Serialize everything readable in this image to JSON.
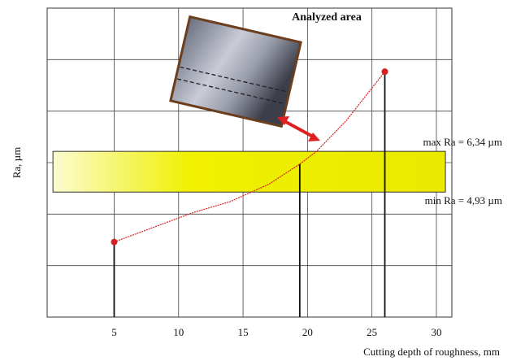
{
  "chart_data": {
    "type": "line",
    "x_label": "Cutting depth of roughness, mm",
    "y_label": "Ra, µm",
    "annotation": "Analyzed area",
    "x": [
      5,
      8,
      11,
      14,
      17,
      19.4,
      20.7,
      23,
      26
    ],
    "values": [
      3.2,
      3.7,
      4.2,
      4.6,
      5.2,
      5.9,
      6.34,
      7.4,
      9.1
    ],
    "color": "#d42020",
    "xlim": [
      -0.2,
      31.2
    ],
    "ylim": [
      0.6,
      11.3
    ],
    "xticks": [
      5,
      10,
      15,
      20,
      25,
      30
    ],
    "grid": true,
    "band": {
      "min": 4.93,
      "max": 6.34,
      "min_label": "min Ra = 4,93 µm",
      "max_label": "max Ra = 6,34 µm",
      "xlim": [
        0.25,
        30.7
      ],
      "color": "#f0f000"
    }
  }
}
